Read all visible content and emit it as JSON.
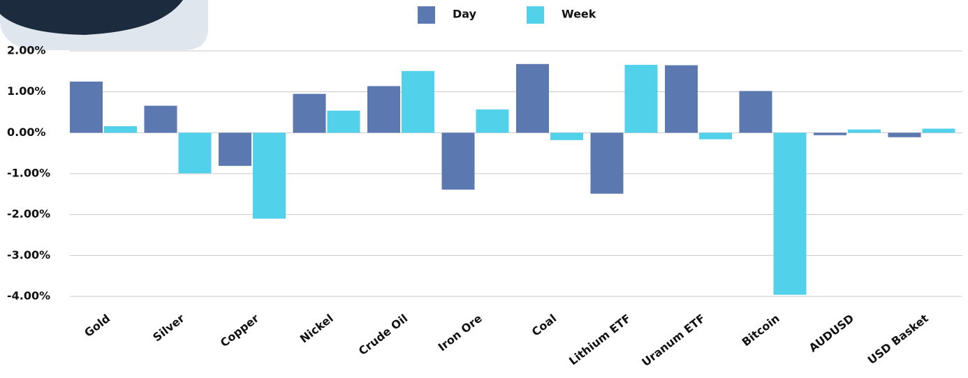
{
  "chart_data": {
    "type": "bar",
    "categories": [
      "Gold",
      "Silver",
      "Copper",
      "Nickel",
      "Crude Oil",
      "Iron Ore",
      "Coal",
      "Lithium ETF",
      "Uranum ETF",
      "Bitcoin",
      "AUDUSD",
      "USD Basket"
    ],
    "series": [
      {
        "name": "Day",
        "color": "#5b78b0",
        "values": [
          1.25,
          0.66,
          -0.81,
          0.95,
          1.14,
          -1.39,
          1.68,
          -1.49,
          1.65,
          1.02,
          -0.06,
          -0.11
        ]
      },
      {
        "name": "Week",
        "color": "#52d1ea",
        "values": [
          0.16,
          -0.99,
          -2.1,
          0.54,
          1.51,
          0.57,
          -0.18,
          1.66,
          -0.16,
          -3.96,
          0.08,
          0.1
        ]
      }
    ],
    "ylim": [
      -4,
      2
    ],
    "yticks": [
      {
        "value": -4,
        "label": "-4.00%"
      },
      {
        "value": -3,
        "label": "-3.00%"
      },
      {
        "value": -2,
        "label": "-2.00%"
      },
      {
        "value": -1,
        "label": "-1.00%"
      },
      {
        "value": 0,
        "label": "0.00%"
      },
      {
        "value": 1,
        "label": "1.00%"
      },
      {
        "value": 2,
        "label": "2.00%"
      }
    ],
    "grid": true,
    "legend": "top"
  }
}
